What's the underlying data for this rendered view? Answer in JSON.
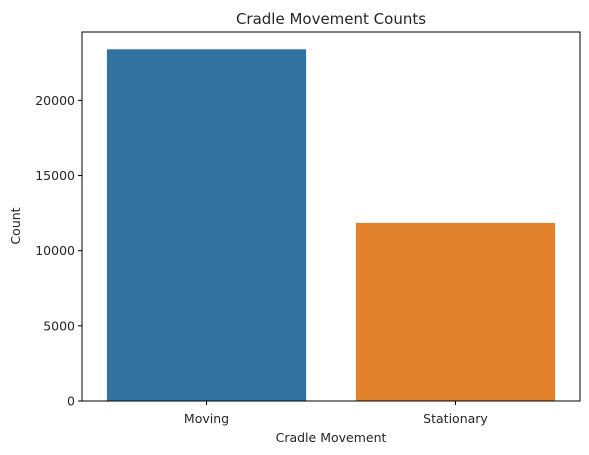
{
  "chart_data": {
    "type": "bar",
    "title": "Cradle Movement Counts",
    "xlabel": "Cradle Movement",
    "ylabel": "Count",
    "categories": [
      "Moving",
      "Stationary"
    ],
    "values": [
      23400,
      11850
    ],
    "colors": [
      "#3274a1",
      "#e1812c"
    ],
    "ylim": [
      0,
      24550
    ],
    "yticks": [
      0,
      5000,
      10000,
      15000,
      20000
    ],
    "grid": false
  }
}
